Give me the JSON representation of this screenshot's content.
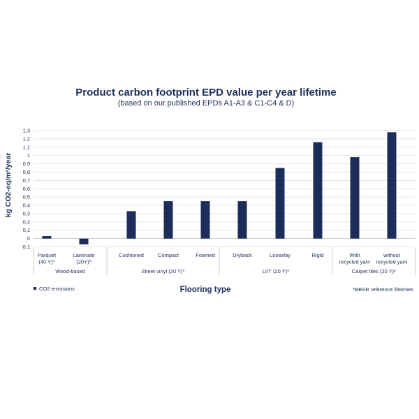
{
  "chart_data": {
    "type": "bar",
    "title": "Product carbon footprint EPD value per year lifetime",
    "subtitle": "(based on our published EPDs A1-A3 & C1-C4 & D)",
    "ylabel": "kg CO2-eq/m²/year",
    "xlabel": "Flooring type",
    "ylim": [
      -0.1,
      1.3
    ],
    "yticks": [
      "-0,1",
      "0",
      "0,1",
      "0,2",
      "0,3",
      "0,4",
      "0,5",
      "0,6",
      "0,7",
      "0,8",
      "0,9",
      "1",
      "1,1",
      "1,2",
      "1,3"
    ],
    "ytick_values": [
      -0.1,
      0,
      0.1,
      0.2,
      0.3,
      0.4,
      0.5,
      0.6,
      0.7,
      0.8,
      0.9,
      1.0,
      1.1,
      1.2,
      1.3
    ],
    "grid": true,
    "categories": [
      [
        "Parquet",
        "(40 Y)*"
      ],
      [
        "Laminate",
        "(20Y)*"
      ],
      [
        "Cushioned"
      ],
      [
        "Compact"
      ],
      [
        "Foamed"
      ],
      [
        "Dryback"
      ],
      [
        "Looselay"
      ],
      [
        "Rigid"
      ],
      [
        "With",
        "recycled yarn"
      ],
      [
        "without",
        "recycled yarn"
      ]
    ],
    "groups": [
      {
        "label": "Wood-based",
        "count": 2
      },
      {
        "label": "Sheet vinyl (20 Y)*",
        "count": 3
      },
      {
        "label": "LVT (20 Y)*",
        "count": 3
      },
      {
        "label": "Carpet tiles (20 Y)*",
        "count": 2
      }
    ],
    "series": [
      {
        "name": "CO2 emissions",
        "color": "#1d2d5b",
        "values": [
          0.03,
          -0.07,
          0.33,
          0.45,
          0.45,
          0.45,
          0.85,
          1.16,
          0.98,
          1.28
        ]
      }
    ],
    "legend_position": "bottom-left",
    "note": "*BBSR reference lifetimes"
  }
}
